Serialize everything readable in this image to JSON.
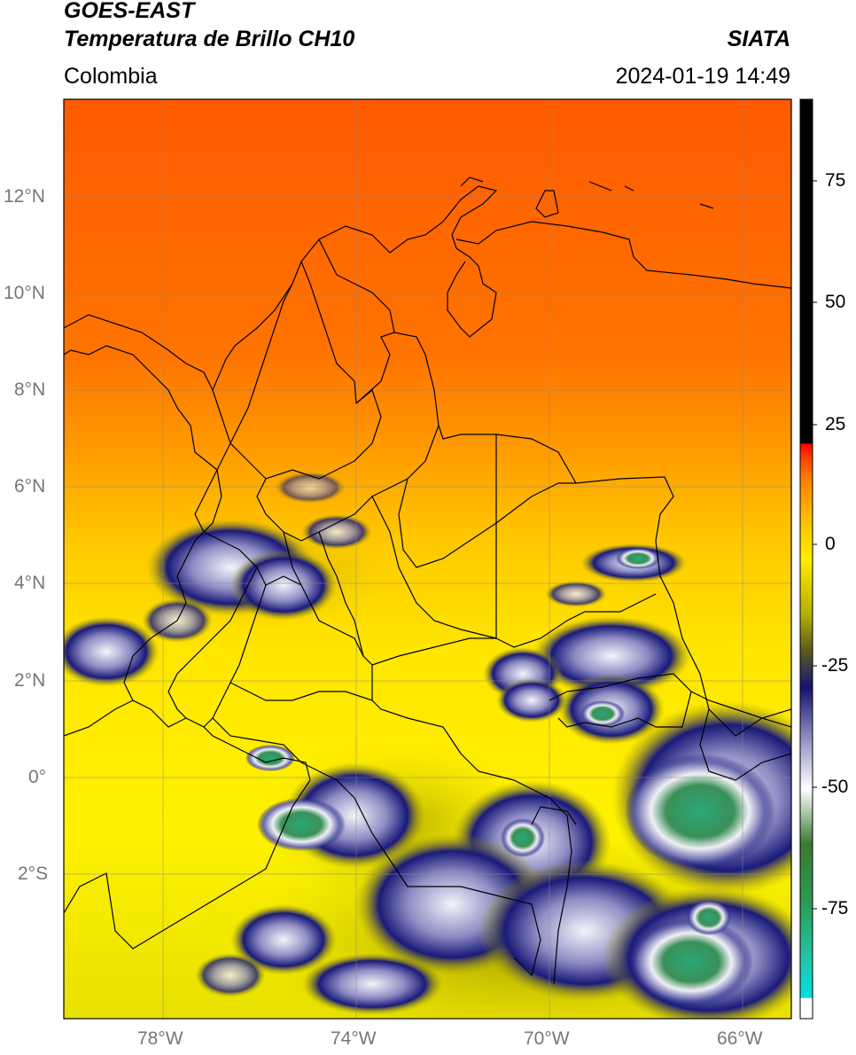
{
  "header": {
    "satellite": "GOES-EAST",
    "product": "Temperatura de Brillo CH10",
    "organization": "SIATA",
    "region": "Colombia",
    "timestamp": "2024-01-19 14:49"
  },
  "map": {
    "lat_ticks": [
      "12°N",
      "10°N",
      "8°N",
      "6°N",
      "4°N",
      "2°N",
      "0°",
      "2°S"
    ],
    "lon_ticks": [
      "78°W",
      "74°W",
      "70°W",
      "66°W"
    ],
    "extent": {
      "lon_min": -80,
      "lon_max": -65,
      "lat_min": -5,
      "lat_max": 14
    }
  },
  "colorbar": {
    "ticks": [
      "75",
      "50",
      "25",
      "0",
      "-25",
      "-50",
      "-75"
    ],
    "range": [
      -95,
      90
    ]
  },
  "colors": {
    "warm": "#ff6000",
    "orange": "#ff8c00",
    "yellow": "#ffe600",
    "olive": "#b8b400",
    "navy": "#1a1a7a",
    "white": "#f4f4f8",
    "green": "#3a9a5a",
    "teal": "#30c8a8"
  }
}
